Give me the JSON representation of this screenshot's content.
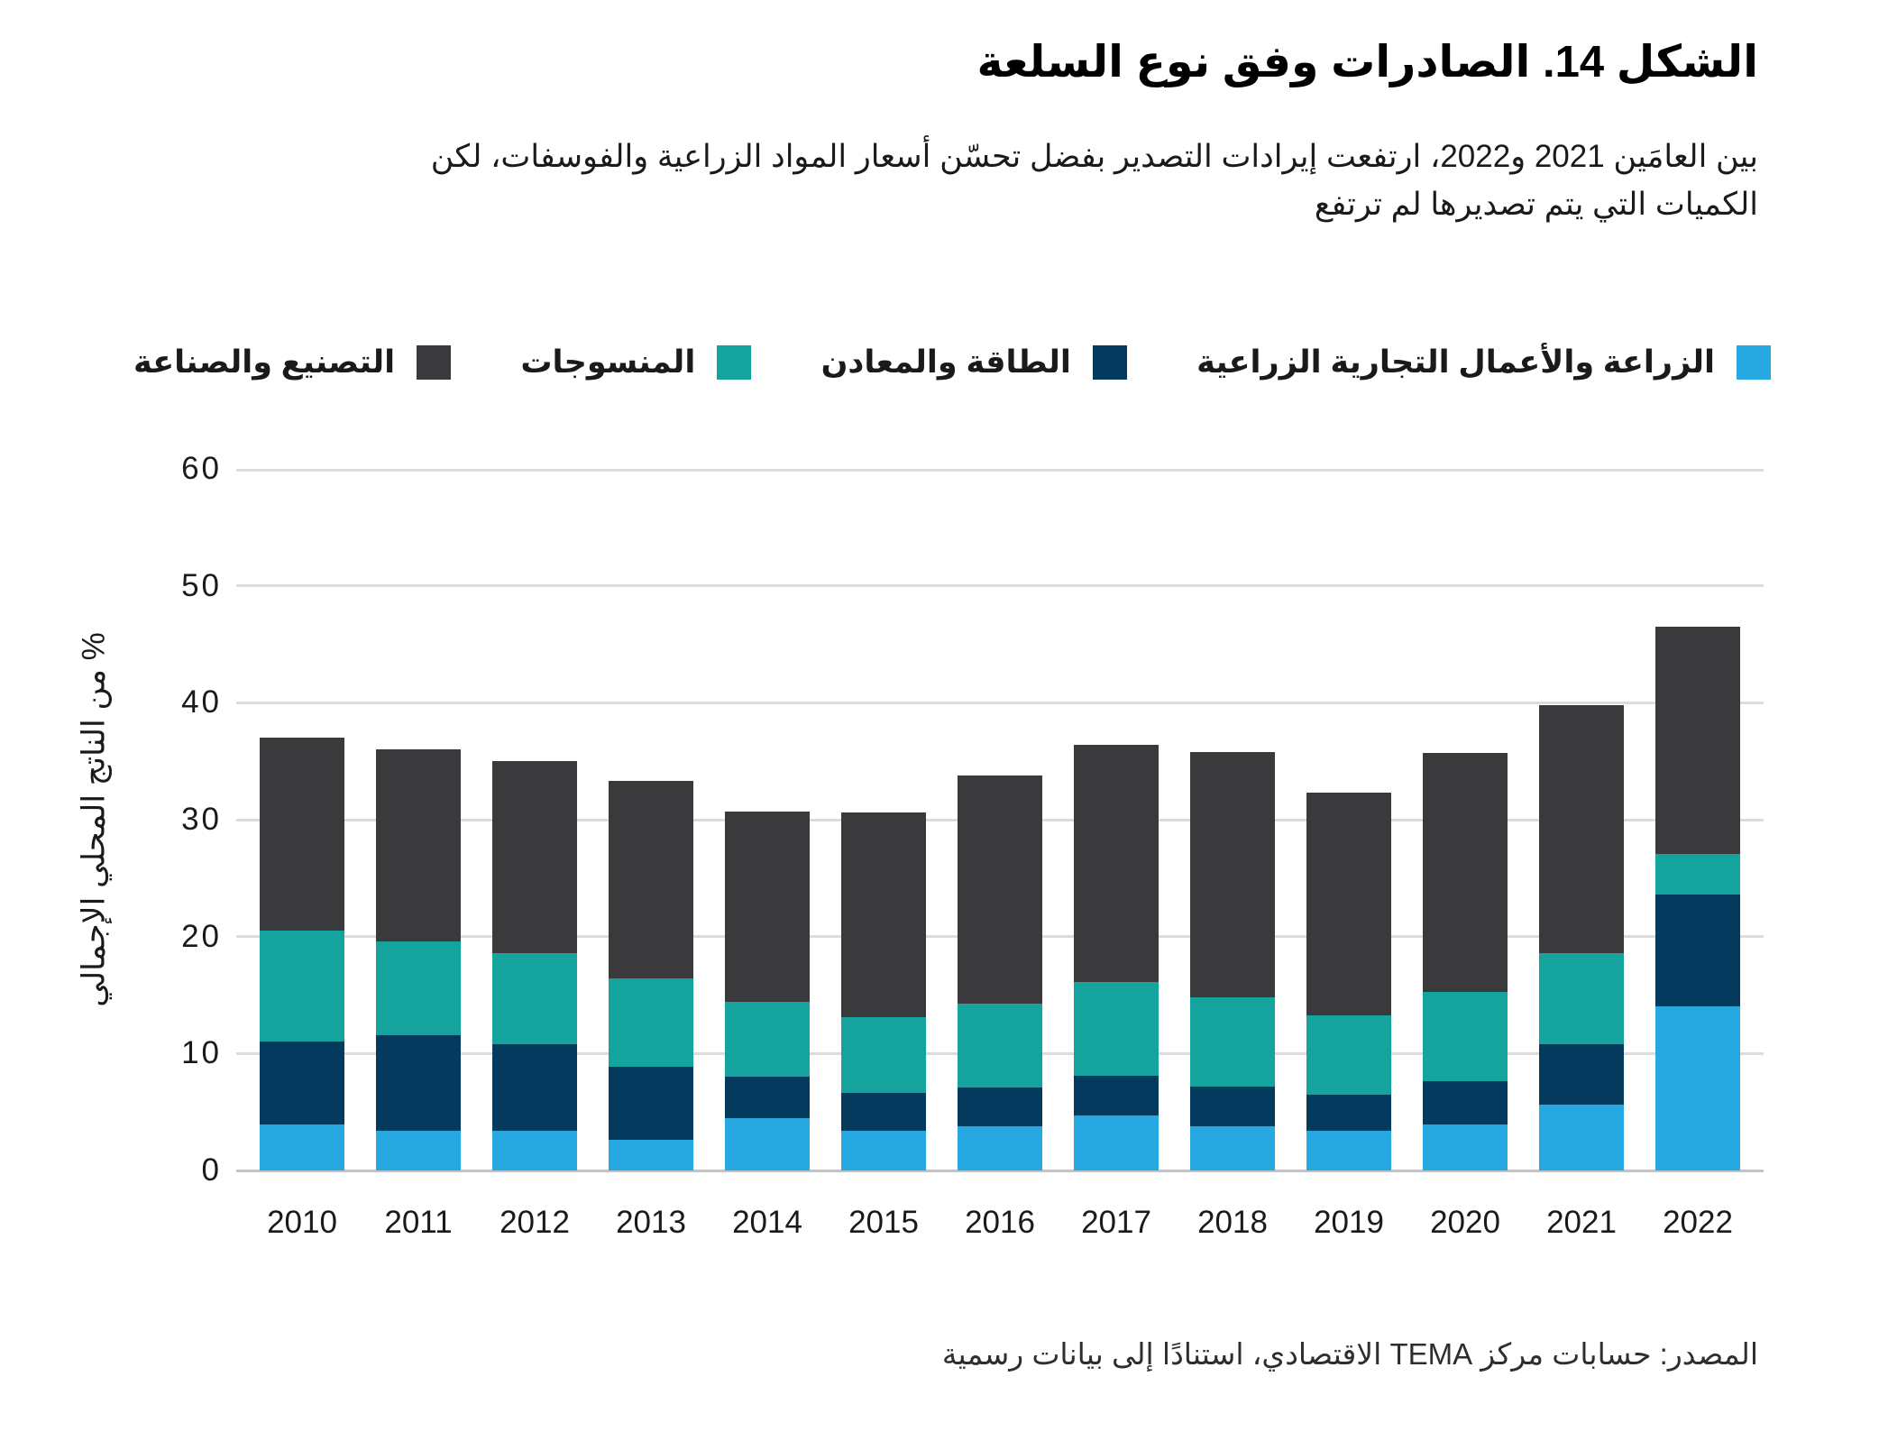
{
  "figure": {
    "title": "الشكل 14. الصادرات وفق نوع السلعة",
    "subtitle_line1": "بين العامَين 2021 و2022، ارتفعت إيرادات التصدير بفضل تحسّن أسعار المواد الزراعية والفوسفات، لكن",
    "subtitle_line2": "الكميات التي يتم تصديرها لم ترتفع",
    "source": "المصدر: حسابات مركز TEMA الاقتصادي، استنادًا إلى بيانات رسمية"
  },
  "chart_data": {
    "type": "bar",
    "stacked": true,
    "title": "الشكل 14. الصادرات وفق نوع السلعة",
    "xlabel": "",
    "ylabel": "% من الناتج المحلي الإجمالي",
    "ylim": [
      0,
      60
    ],
    "yticks": [
      0,
      10,
      20,
      30,
      40,
      50,
      60
    ],
    "grid": true,
    "legend_position": "top",
    "categories": [
      "2010",
      "2011",
      "2012",
      "2013",
      "2014",
      "2015",
      "2016",
      "2017",
      "2018",
      "2019",
      "2020",
      "2021",
      "2022"
    ],
    "series": [
      {
        "key": "agriculture",
        "name": "الزراعة والأعمال التجارية الزراعية",
        "color": "#28A8E0",
        "values": [
          3.9,
          3.4,
          3.4,
          2.6,
          4.5,
          3.4,
          3.8,
          4.7,
          3.8,
          3.4,
          3.9,
          5.6,
          14.0
        ]
      },
      {
        "key": "energy",
        "name": "الطاقة والمعادن",
        "color": "#053A5F",
        "values": [
          7.1,
          8.2,
          7.4,
          6.3,
          3.5,
          3.2,
          3.3,
          3.4,
          3.4,
          3.1,
          3.7,
          5.2,
          9.6
        ]
      },
      {
        "key": "textiles",
        "name": "المنسوجات",
        "color": "#15A49D",
        "values": [
          9.5,
          8.0,
          7.8,
          7.5,
          6.4,
          6.5,
          7.2,
          8.0,
          7.6,
          6.8,
          7.7,
          7.8,
          3.5
        ]
      },
      {
        "key": "manufacturing",
        "name": "التصنيع والصناعة",
        "color": "#3A393B",
        "values": [
          16.5,
          16.4,
          16.4,
          16.9,
          16.3,
          17.5,
          19.5,
          20.3,
          21.0,
          19.0,
          20.4,
          21.2,
          19.4
        ]
      }
    ],
    "totals": [
      37.0,
      36.0,
      35.0,
      33.3,
      30.7,
      30.6,
      33.8,
      36.4,
      35.8,
      32.3,
      35.7,
      39.8,
      46.5
    ]
  },
  "colors": {
    "gridline": "#DCDCDC",
    "baseline": "#C4C4C4",
    "text": "#1A1A1A"
  }
}
